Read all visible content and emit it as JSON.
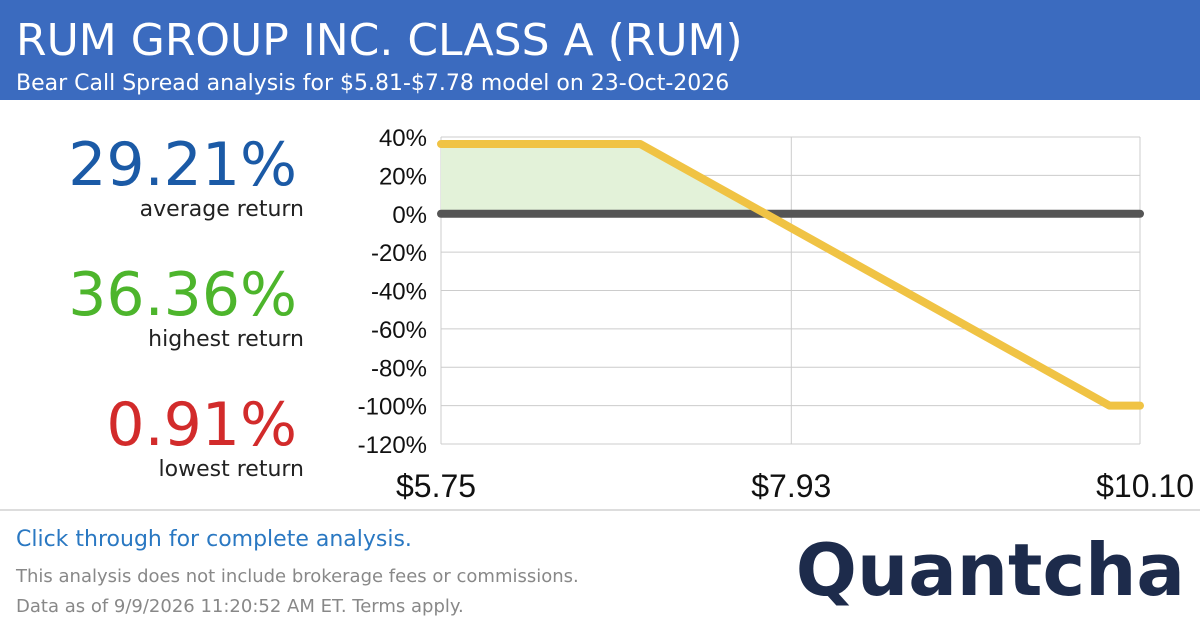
{
  "header": {
    "title": "RUM GROUP INC. CLASS A (RUM)",
    "subtitle": "Bear Call Spread analysis for $5.81-$7.78 model on 23-Oct-2026"
  },
  "stats": [
    {
      "value": "29.21%",
      "label": "average return",
      "color": "#1b5aa6"
    },
    {
      "value": "36.36%",
      "label": "highest return",
      "color": "#4db52c"
    },
    {
      "value": "0.91%",
      "label": "lowest return",
      "color": "#d22b2b"
    }
  ],
  "chart_data": {
    "type": "line",
    "series": [
      {
        "color": "#f0c344",
        "x": [
          5.75,
          6.99,
          7.77,
          9.91,
          10.1
        ],
        "values": [
          36.36,
          36.36,
          0,
          -100,
          -100
        ]
      }
    ],
    "xlim": [
      5.75,
      10.1
    ],
    "xticks": [
      {
        "value": 5.75,
        "label": "$5.75"
      },
      {
        "value": 7.93,
        "label": "$7.93"
      },
      {
        "value": 10.1,
        "label": "$10.10"
      }
    ],
    "ylim": [
      -120,
      40
    ],
    "yticks": [
      {
        "value": 40,
        "label": "40%"
      },
      {
        "value": 20,
        "label": "20%"
      },
      {
        "value": 0,
        "label": "0%"
      },
      {
        "value": -20,
        "label": "-20%"
      },
      {
        "value": -40,
        "label": "-40%"
      },
      {
        "value": -60,
        "label": "-60%"
      },
      {
        "value": -80,
        "label": "-80%"
      },
      {
        "value": -100,
        "label": "-100%"
      },
      {
        "value": -120,
        "label": "-120%"
      }
    ],
    "grid": true
  },
  "footer": {
    "link": "Click through for complete analysis.",
    "note": "This analysis does not include brokerage fees or commissions.",
    "date": "Data as of 9/9/2026 11:20:52 AM ET. Terms apply.",
    "logo": "Quantcha"
  }
}
